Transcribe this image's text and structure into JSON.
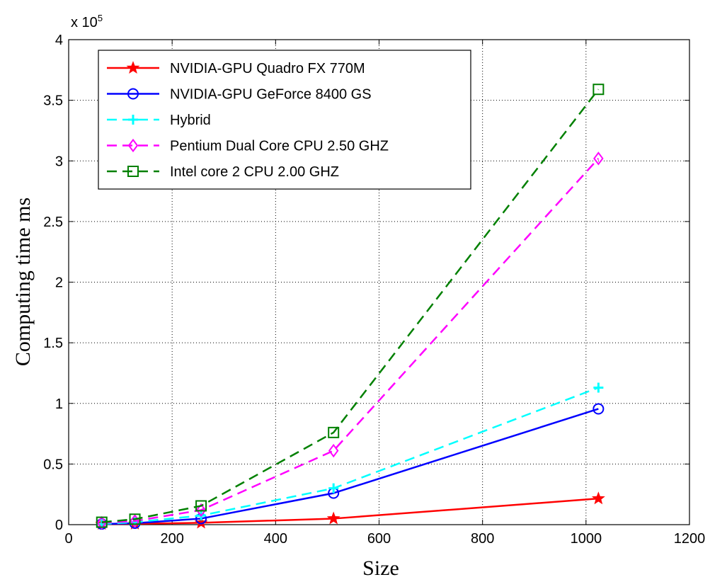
{
  "chart_data": {
    "type": "line",
    "title": "",
    "xlabel": "Size",
    "ylabel": "Computing time ms",
    "y_exponent_label": "x 10",
    "y_exponent": "5",
    "xlim": [
      0,
      1200
    ],
    "ylim": [
      0,
      400000
    ],
    "grid": true,
    "legend_position": "top-left",
    "xticks": [
      0,
      200,
      400,
      600,
      800,
      1000,
      1200
    ],
    "xtick_labels": [
      "0",
      "200",
      "400",
      "600",
      "800",
      "1000",
      "1200"
    ],
    "yticks": [
      0,
      50000,
      100000,
      150000,
      200000,
      250000,
      300000,
      350000,
      400000
    ],
    "ytick_labels": [
      "0",
      "0.5",
      "1",
      "1.5",
      "2",
      "2.5",
      "3",
      "3.5",
      "4"
    ],
    "x": [
      64,
      128,
      256,
      512,
      1024
    ],
    "series": [
      {
        "name": "NVIDIA-GPU Quadro FX 770M",
        "values": [
          500,
          700,
          1500,
          5000,
          21500
        ],
        "color": "#ff0000",
        "marker": "star",
        "dash": "solid"
      },
      {
        "name": "NVIDIA-GPU GeForce 8400 GS",
        "values": [
          500,
          1200,
          5000,
          26000,
          95500
        ],
        "color": "#0000ff",
        "marker": "circle",
        "dash": "solid"
      },
      {
        "name": "Hybrid",
        "values": [
          600,
          2000,
          7500,
          30000,
          113000
        ],
        "color": "#00ffff",
        "marker": "plus",
        "dash": "dashed"
      },
      {
        "name": "Pentium Dual Core CPU 2.50 GHZ",
        "values": [
          1500,
          3000,
          12000,
          61000,
          302000
        ],
        "color": "#ff00ff",
        "marker": "diamond",
        "dash": "dashed"
      },
      {
        "name": "Intel core 2 CPU 2.00 GHZ",
        "values": [
          2000,
          4500,
          15500,
          76000,
          359000
        ],
        "color": "#008000",
        "marker": "square",
        "dash": "dashed"
      }
    ]
  }
}
